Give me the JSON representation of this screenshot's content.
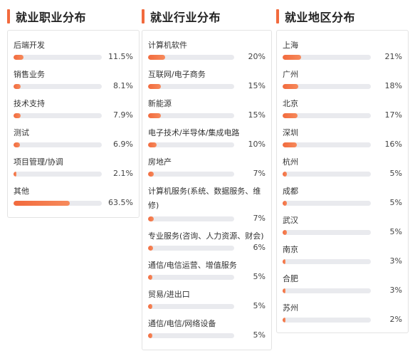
{
  "columns": [
    {
      "title": "就业职业分布",
      "items": [
        {
          "label": "后端开发",
          "percent_text": "11.5%",
          "value": 11.5
        },
        {
          "label": "销售业务",
          "percent_text": "8.1%",
          "value": 8.1
        },
        {
          "label": "技术支持",
          "percent_text": "7.9%",
          "value": 7.9
        },
        {
          "label": "测试",
          "percent_text": "6.9%",
          "value": 6.9
        },
        {
          "label": "项目管理/协调",
          "percent_text": "2.1%",
          "value": 2.1
        },
        {
          "label": "其他",
          "percent_text": "63.5%",
          "value": 63.5
        }
      ]
    },
    {
      "title": "就业行业分布",
      "items": [
        {
          "label": "计算机软件",
          "percent_text": "20%",
          "value": 20
        },
        {
          "label": "互联网/电子商务",
          "percent_text": "15%",
          "value": 15
        },
        {
          "label": "新能源",
          "percent_text": "15%",
          "value": 15
        },
        {
          "label": "电子技术/半导体/集成电路",
          "percent_text": "10%",
          "value": 10
        },
        {
          "label": "房地产",
          "percent_text": "7%",
          "value": 7
        },
        {
          "label": "计算机服务(系统、数据服务、维",
          "label_line2": "修)",
          "percent_text": "7%",
          "value": 7
        },
        {
          "label": "专业服务(咨询、人力资源、财会)",
          "percent_text": "6%",
          "value": 6
        },
        {
          "label": "通信/电信运营、增值服务",
          "percent_text": "5%",
          "value": 5
        },
        {
          "label": "贸易/进出口",
          "percent_text": "5%",
          "value": 5
        },
        {
          "label": "通信/电信/网络设备",
          "percent_text": "5%",
          "value": 5
        }
      ]
    },
    {
      "title": "就业地区分布",
      "items": [
        {
          "label": "上海",
          "percent_text": "21%",
          "value": 21
        },
        {
          "label": "广州",
          "percent_text": "18%",
          "value": 18
        },
        {
          "label": "北京",
          "percent_text": "17%",
          "value": 17
        },
        {
          "label": "深圳",
          "percent_text": "16%",
          "value": 16
        },
        {
          "label": "杭州",
          "percent_text": "5%",
          "value": 5
        },
        {
          "label": "成都",
          "percent_text": "5%",
          "value": 5
        },
        {
          "label": "武汉",
          "percent_text": "5%",
          "value": 5
        },
        {
          "label": "南京",
          "percent_text": "3%",
          "value": 3
        },
        {
          "label": "合肥",
          "percent_text": "3%",
          "value": 3
        },
        {
          "label": "苏州",
          "percent_text": "2%",
          "value": 2
        }
      ]
    }
  ],
  "colors": {
    "accent": "#f26a3d",
    "track": "#e9eaee",
    "border": "#e3e3e3"
  }
}
